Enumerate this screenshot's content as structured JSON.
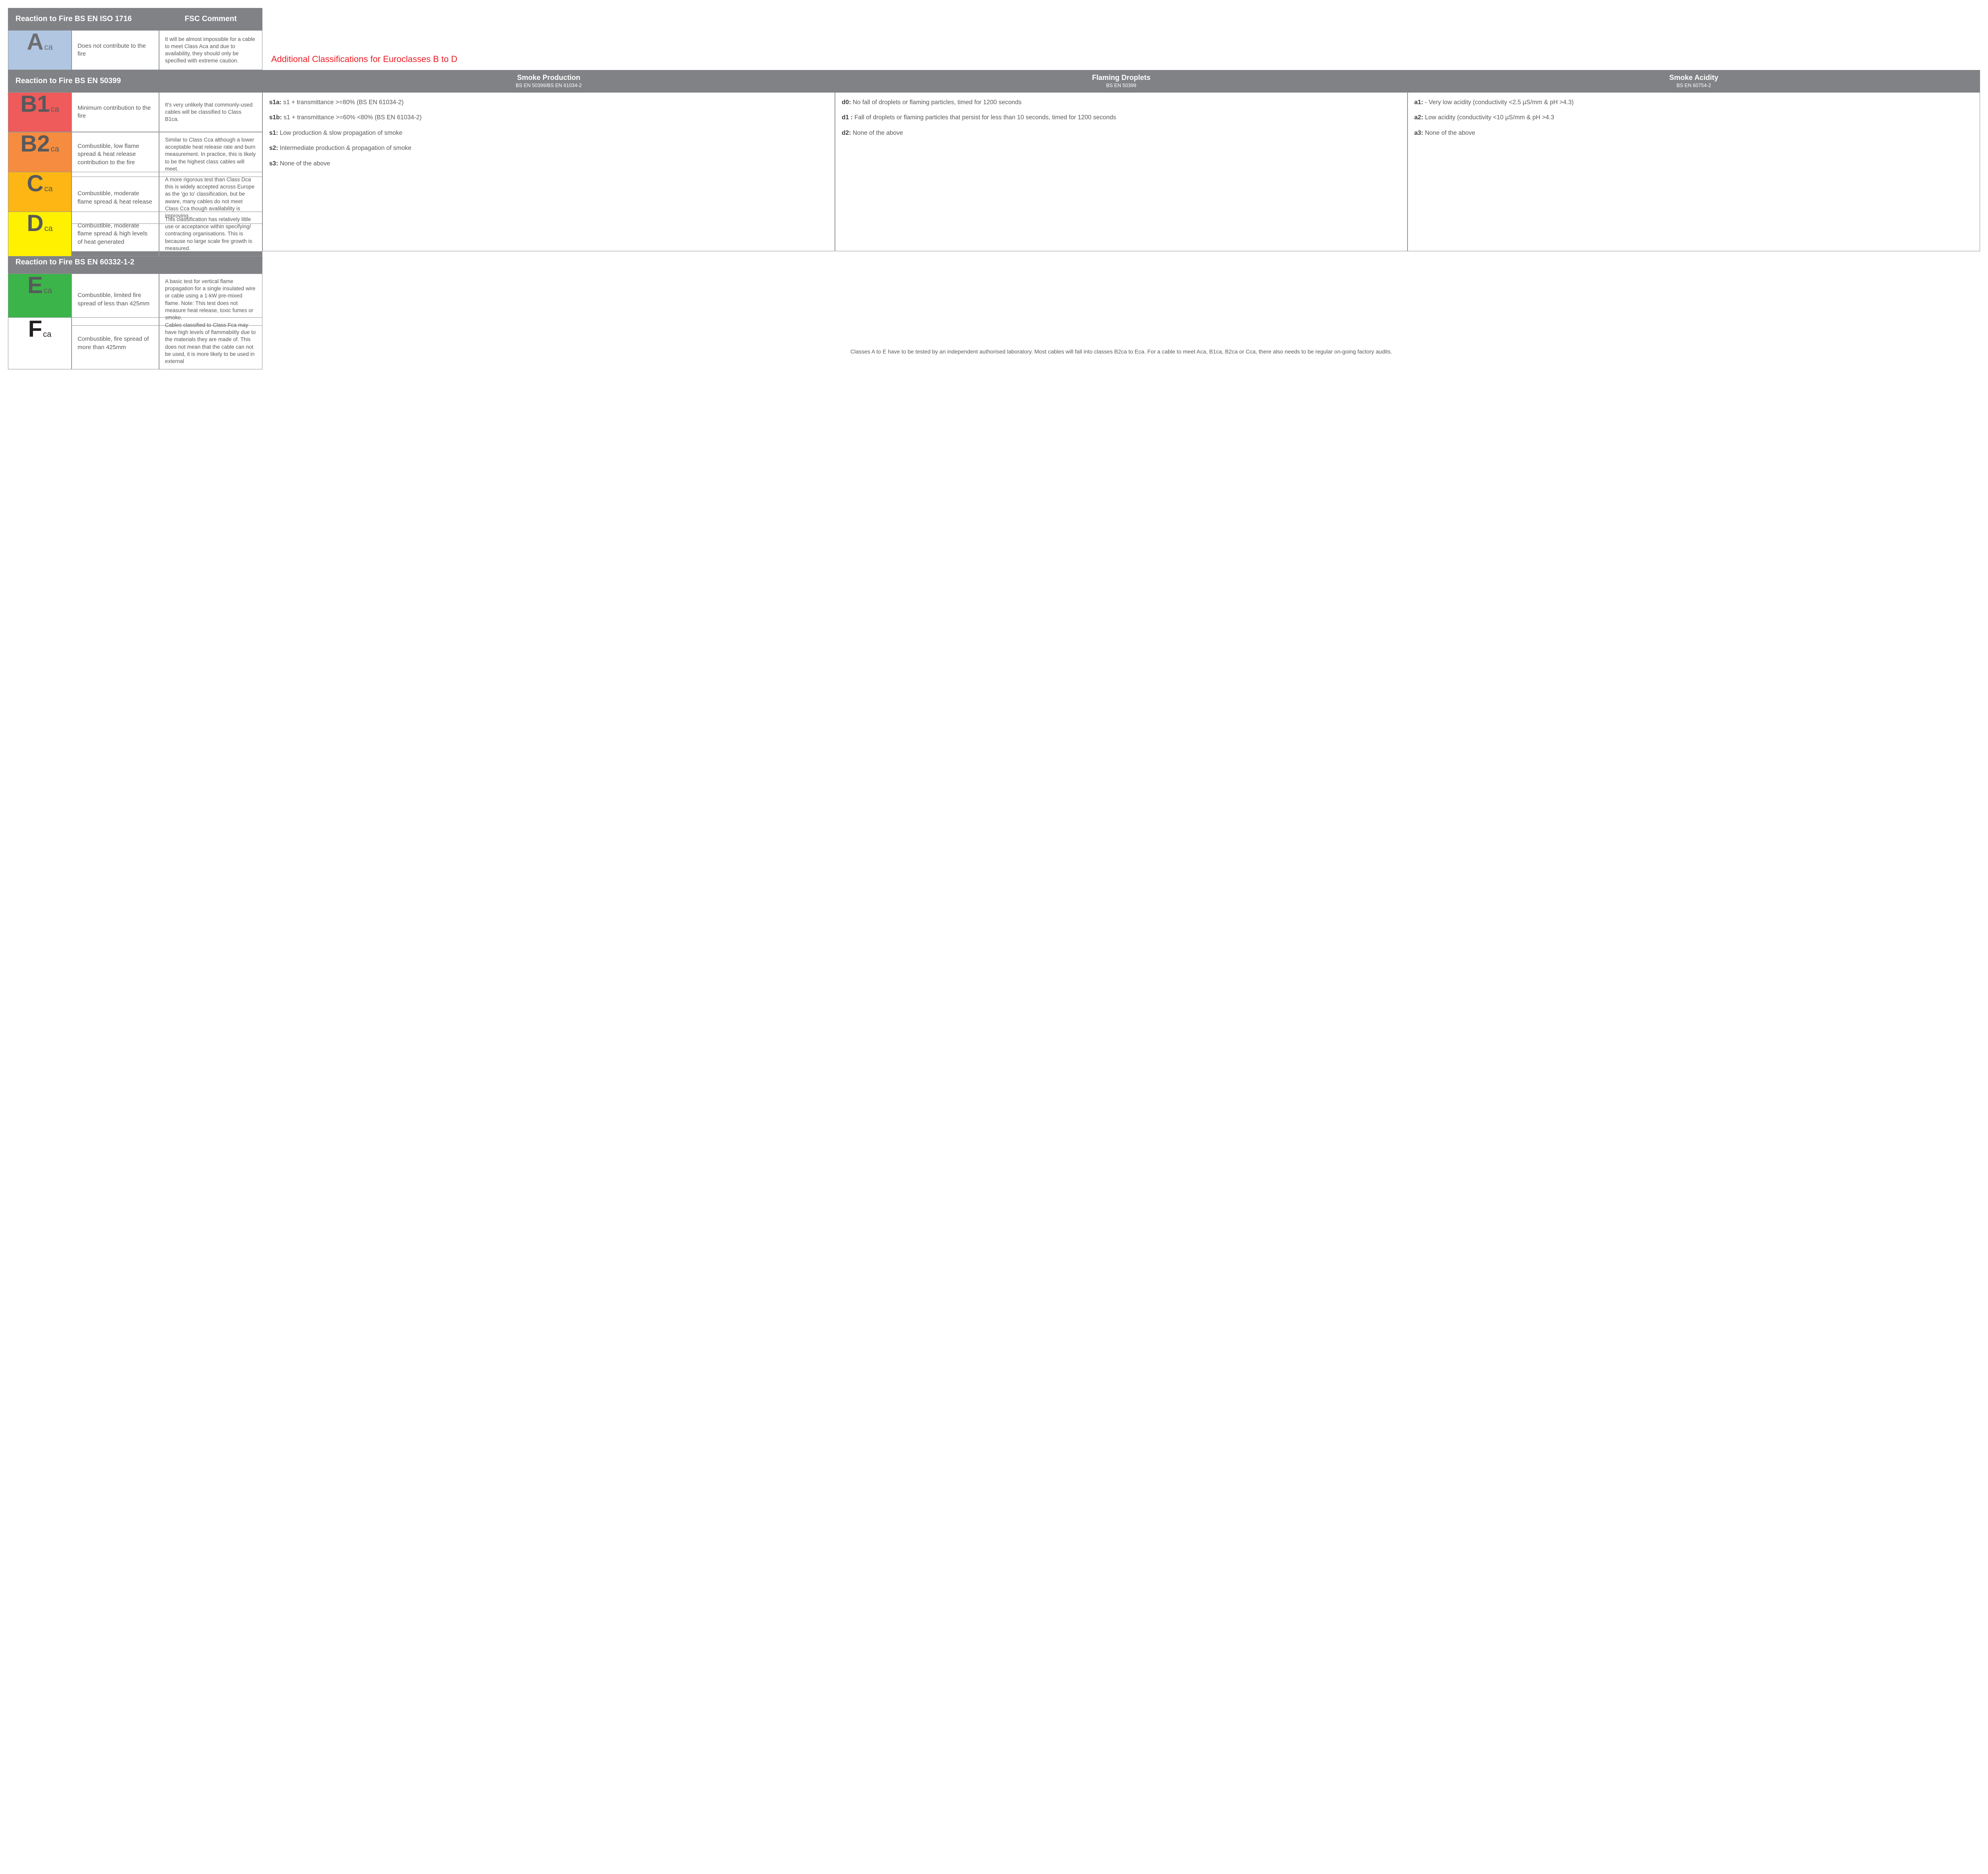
{
  "colors": {
    "header_bg": "#808285",
    "border": "#939598",
    "text": "#58595b",
    "accent_title": "#ed1c24"
  },
  "left": {
    "section1": {
      "header_main": "Reaction to Fire BS EN ISO 1716",
      "header_comment": "FSC Comment",
      "rows": [
        {
          "chip_main": "A",
          "chip_sub": "ca",
          "chip_bg": "#b1c6e1",
          "chip_fg": "#6d6e71",
          "desc": "Does not contribute to the fire",
          "comment": "It will be almost impossible for a cable to meet Class Aca and due to availability, they should only be specified with extreme caution."
        }
      ]
    },
    "section2": {
      "header_main": "Reaction to Fire BS EN 50399",
      "rows": [
        {
          "chip_main": "B1",
          "chip_sub": "ca",
          "chip_bg": "#ef5a5a",
          "chip_fg": "#58595b",
          "desc": "Minimum contribution to the fire",
          "comment": "It's very unlikely that commonly-used cables will be classified to Class B1ca."
        },
        {
          "chip_main": "B2",
          "chip_sub": "ca",
          "chip_bg": "#f58c3f",
          "chip_fg": "#58595b",
          "desc": "Combustible, low flame spread & heat release contribution to the fire",
          "comment": "Similar to Class Cca although a lower acceptable heat release rate and burn measurement. In practice, this is likely to be the highest class cables will meet."
        },
        {
          "chip_main": "C",
          "chip_sub": "ca",
          "chip_bg": "#fdb614",
          "chip_fg": "#58595b",
          "desc": "Combustible, moderate flame spread & heat release",
          "comment": "A more rigorous test than Class Dca this is widely accepted across Europe as the 'go to' classification, but be aware, many cables do not meet Class Cca though avalilability is improving."
        },
        {
          "chip_main": "D",
          "chip_sub": "ca",
          "chip_bg": "#fff100",
          "chip_fg": "#58595b",
          "desc": "Combustible, moderate flame spread & high levels of heat generated",
          "comment": "This classification has relatively little use or acceptance within specifying/ contracting organisations. This is because no large scale fire growth is measured."
        }
      ]
    },
    "section3": {
      "header_main": "Reaction to Fire BS EN 60332-1-2",
      "rows": [
        {
          "chip_main": "E",
          "chip_sub": "ca",
          "chip_bg": "#3bb44a",
          "chip_fg": "#58595b",
          "desc": "Combustible, limited fire spread of less than 425mm",
          "comment": "A basic test for vertical flame propagation for a single insulated wire or cable using a 1-kW pre-mixed flame. Note: This test does not measure heat release, toxic fumes or smoke."
        },
        {
          "chip_main": "F",
          "chip_sub": "ca",
          "chip_bg": "#ffffff",
          "chip_fg": "#231f20",
          "desc": "Combustible, fire spread of more than 425mm",
          "comment": "Cables classified to Class Fca may have high levels of flammabiitly due to the materials they are made of. This does not mean that the cable can not be used, it is more likely to be used in external"
        }
      ]
    }
  },
  "right": {
    "title": "Additional Classifications for Euroclasses B to D",
    "columns": [
      {
        "title": "Smoke Production",
        "sub": "BS EN 50399/BS EN 61034-2"
      },
      {
        "title": "Flaming Droplets",
        "sub": "BS EN 50399"
      },
      {
        "title": "Smoke Acidity",
        "sub": "BS EN 60754-2"
      }
    ],
    "smoke": {
      "s1a": "s1a: s1 + transmittance >=80% (BS EN 61034-2)",
      "s1b": "s1b: s1 + transmittance >=60% <80% (BS EN 61034-2)",
      "s1": "s1: Low production & slow propagation of smoke",
      "s2": "s2: Intermediate production & propagation of smoke",
      "s3": "s3: None of the above"
    },
    "droplets": {
      "d0": "d0: No fall of droplets or flaming  particles, timed for 1200 seconds",
      "d1": "d1 : Fall of droplets or flaming particles that persist for less than 10 seconds, timed for 1200 seconds",
      "d2": "d2: None of the above"
    },
    "acidity": {
      "a1": "a1:  - Very low acidity (conductivity <2.5 µS/mm & pH >4.3)",
      "a2": "a2: Low acidity (conductivity <10 µS/mm & pH >4.3",
      "a3": "a3: None of the above"
    },
    "footnote": "Classes A to E have to be tested by an independent authorised laboratory. Most cables will fall into classes B2ca to Eca. For a cable to meet Aca, B1ca, B2ca or Cca, there also needs to be regular on-going factory audits."
  }
}
